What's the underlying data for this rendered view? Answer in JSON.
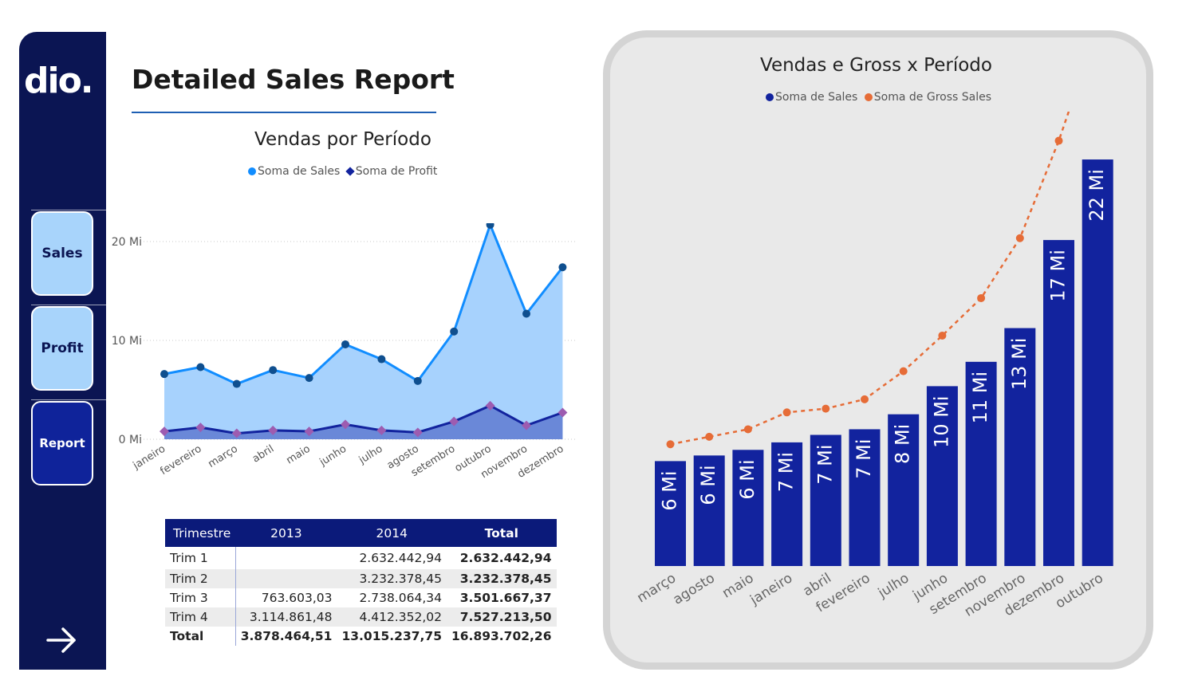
{
  "sidebar": {
    "logo": "dio.",
    "nav": [
      {
        "label": "Sales"
      },
      {
        "label": "Profit"
      },
      {
        "label": "Report"
      }
    ],
    "arrow_icon": "arrow-right-icon"
  },
  "page": {
    "title": "Detailed Sales Report"
  },
  "colors": {
    "sidebar": "#0b1553",
    "sales": "#118dff",
    "profit": "#12239e",
    "gross": "#e66c37",
    "bar": "#12239e"
  },
  "left_chart": {
    "title": "Vendas por Período",
    "legend": [
      "Soma de  Sales",
      "Soma de Profit"
    ]
  },
  "right_chart": {
    "title": "Vendas e Gross x Período",
    "legend": [
      "Soma de  Sales",
      "Soma de Gross Sales"
    ]
  },
  "table": {
    "headers": [
      "Trimestre",
      "2013",
      "2014",
      "Total"
    ],
    "rows": [
      [
        "Trim 1",
        "",
        "2.632.442,94",
        "2.632.442,94"
      ],
      [
        "Trim 2",
        "",
        "3.232.378,45",
        "3.232.378,45"
      ],
      [
        "Trim 3",
        "763.603,03",
        "2.738.064,34",
        "3.501.667,37"
      ],
      [
        "Trim 4",
        "3.114.861,48",
        "4.412.352,02",
        "7.527.213,50"
      ]
    ],
    "total": [
      "Total",
      "3.878.464,51",
      "13.015.237,75",
      "16.893.702,26"
    ]
  },
  "chart_data": [
    {
      "type": "area",
      "title": "Vendas por Período",
      "categories": [
        "janeiro",
        "fevereiro",
        "março",
        "abril",
        "maio",
        "junho",
        "julho",
        "agosto",
        "setembro",
        "outubro",
        "novembro",
        "dezembro"
      ],
      "series": [
        {
          "name": "Soma de  Sales",
          "values": [
            6.6,
            7.3,
            5.6,
            7.0,
            6.2,
            9.6,
            8.1,
            5.9,
            10.9,
            21.7,
            12.7,
            17.4
          ]
        },
        {
          "name": "Soma de Profit",
          "values": [
            0.8,
            1.2,
            0.6,
            0.9,
            0.8,
            1.5,
            0.9,
            0.7,
            1.8,
            3.4,
            1.4,
            2.7
          ]
        }
      ],
      "y_ticks": [
        "0 Mi",
        "10 Mi",
        "20 Mi"
      ],
      "ylim": [
        0,
        22
      ],
      "grid": true,
      "legend": "top"
    },
    {
      "type": "bar",
      "title": "Vendas e Gross x Período",
      "categories": [
        "março",
        "agosto",
        "maio",
        "janeiro",
        "abril",
        "fevereiro",
        "julho",
        "junho",
        "setembro",
        "novembro",
        "dezembro",
        "outubro"
      ],
      "series": [
        {
          "name": "Soma de  Sales",
          "values": [
            5.6,
            5.9,
            6.2,
            6.6,
            7.0,
            7.3,
            8.1,
            9.6,
            10.9,
            12.7,
            17.4,
            21.7
          ],
          "labels": [
            "6 Mi",
            "6 Mi",
            "6 Mi",
            "7 Mi",
            "7 Mi",
            "7 Mi",
            "8 Mi",
            "10 Mi",
            "11 Mi",
            "13 Mi",
            "17 Mi",
            "22 Mi"
          ]
        },
        {
          "name": "Soma de Gross Sales",
          "values": [
            6.5,
            6.9,
            7.3,
            8.2,
            8.4,
            8.9,
            10.4,
            12.3,
            14.3,
            17.5,
            22.7,
            28.8
          ]
        }
      ],
      "legend": "top"
    }
  ]
}
